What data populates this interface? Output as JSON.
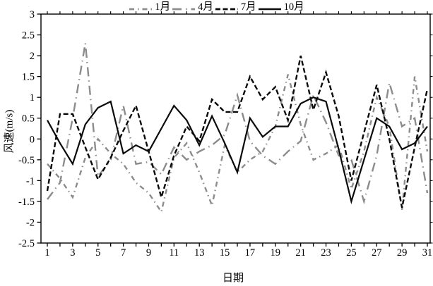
{
  "chart_data": {
    "type": "line",
    "title": "",
    "xlabel": "日期",
    "ylabel": "风速(m/s)",
    "x_range": [
      1,
      31
    ],
    "ylim": [
      -2.5,
      3
    ],
    "grid": false,
    "legend_position": "top-center",
    "x": [
      1,
      2,
      3,
      4,
      5,
      6,
      7,
      8,
      9,
      10,
      11,
      12,
      13,
      14,
      15,
      16,
      17,
      18,
      19,
      20,
      21,
      22,
      23,
      24,
      25,
      26,
      27,
      28,
      29,
      30,
      31
    ],
    "x_tick_labels": [
      "1",
      "3",
      "5",
      "7",
      "9",
      "11",
      "13",
      "15",
      "17",
      "19",
      "21",
      "23",
      "25",
      "27",
      "29",
      "31"
    ],
    "y_tick_labels": [
      "3",
      "2.5",
      "2",
      "1.5",
      "1",
      "0.5",
      "0",
      "-0.5",
      "-1",
      "-1.5",
      "-2",
      "-2.5"
    ],
    "series": [
      {
        "name": "jan",
        "label": "1月",
        "color": "#8c8c8c",
        "dash": "7 5 1.5 5",
        "width": 2.4,
        "values": [
          -0.6,
          -0.95,
          -1.4,
          -0.45,
          0.0,
          -0.35,
          -0.6,
          -1.05,
          -1.3,
          -1.75,
          -0.45,
          -0.1,
          -0.8,
          -1.6,
          -0.15,
          -0.8,
          -0.5,
          -0.3,
          0.3,
          1.55,
          0.35,
          -0.5,
          -0.35,
          -0.15,
          -1.2,
          -0.3,
          1.0,
          0.3,
          -1.7,
          1.5,
          -0.3
        ]
      },
      {
        "name": "apr",
        "label": "4月",
        "color": "#8c8c8c",
        "dash": "13 6 1.5 6",
        "width": 2.4,
        "values": [
          -1.45,
          -1.05,
          0.5,
          2.3,
          -0.9,
          -0.5,
          0.8,
          -0.6,
          -0.55,
          -0.85,
          -0.2,
          -0.5,
          -0.3,
          -0.15,
          0.1,
          1.05,
          -0.05,
          -0.4,
          -0.6,
          -0.3,
          -0.05,
          1.05,
          0.4,
          -0.4,
          -0.5,
          -1.5,
          -0.4,
          1.35,
          0.3,
          0.5,
          -1.3
        ]
      },
      {
        "name": "jul",
        "label": "7月",
        "color": "#0a0a0a",
        "dash": "7 3.5",
        "width": 2.4,
        "values": [
          -1.25,
          0.6,
          0.6,
          -0.2,
          -0.97,
          -0.45,
          0.2,
          0.8,
          -0.3,
          -1.4,
          -0.4,
          0.3,
          -0.05,
          0.95,
          0.65,
          0.65,
          1.5,
          0.95,
          1.25,
          0.45,
          2.0,
          0.7,
          1.6,
          0.55,
          -1.0,
          0.15,
          1.3,
          0.0,
          -1.65,
          -0.2,
          1.2
        ]
      },
      {
        "name": "oct",
        "label": "10月",
        "color": "#0a0a0a",
        "dash": "",
        "width": 2.2,
        "values": [
          0.45,
          -0.1,
          -0.6,
          0.35,
          0.75,
          0.9,
          -0.35,
          -0.15,
          -0.3,
          0.25,
          0.8,
          0.45,
          -0.15,
          0.55,
          -0.1,
          -0.8,
          0.5,
          0.05,
          0.3,
          0.3,
          0.85,
          1.0,
          0.9,
          -0.25,
          -1.5,
          -0.5,
          0.5,
          0.3,
          -0.25,
          -0.1,
          0.3
        ]
      }
    ]
  }
}
